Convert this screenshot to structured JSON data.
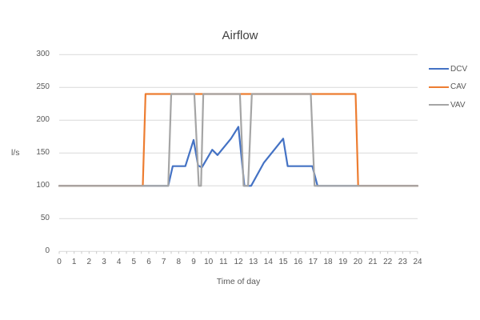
{
  "chart_data": {
    "type": "line",
    "title": "Airflow",
    "xlabel": "Time of day",
    "ylabel": "l/s",
    "xlim": [
      0,
      24
    ],
    "ylim": [
      0,
      300
    ],
    "xticks": [
      0,
      1,
      2,
      3,
      4,
      5,
      6,
      7,
      8,
      9,
      10,
      11,
      12,
      13,
      14,
      15,
      16,
      17,
      18,
      19,
      20,
      21,
      22,
      23,
      24
    ],
    "yticks": [
      0,
      50,
      100,
      150,
      200,
      250,
      300
    ],
    "grid": "horizontal",
    "legend_position": "right",
    "colors": {
      "grid": "#D9D9D9",
      "axis": "#D9D9D9",
      "tick": "#C9C9C9",
      "text": "#595959",
      "title": "#404040"
    },
    "series": [
      {
        "name": "DCV",
        "color": "#4472C4",
        "points": [
          [
            0,
            100
          ],
          [
            7.3,
            100
          ],
          [
            7.6,
            130
          ],
          [
            8.45,
            130
          ],
          [
            9.0,
            170
          ],
          [
            9.3,
            131
          ],
          [
            9.55,
            128
          ],
          [
            10.25,
            155
          ],
          [
            10.6,
            147
          ],
          [
            11.5,
            172
          ],
          [
            12.0,
            190
          ],
          [
            12.4,
            100
          ],
          [
            12.85,
            100
          ],
          [
            13.7,
            135
          ],
          [
            15.0,
            172
          ],
          [
            15.3,
            130
          ],
          [
            16.95,
            130
          ],
          [
            17.3,
            100
          ],
          [
            24,
            100
          ]
        ]
      },
      {
        "name": "CAV",
        "color": "#ED7D31",
        "points": [
          [
            0,
            100
          ],
          [
            5.6,
            100
          ],
          [
            5.78,
            240
          ],
          [
            19.85,
            240
          ],
          [
            20.02,
            100
          ],
          [
            24,
            100
          ]
        ]
      },
      {
        "name": "VAV",
        "color": "#A5A5A5",
        "points": [
          [
            0,
            100
          ],
          [
            7.3,
            100
          ],
          [
            7.5,
            240
          ],
          [
            9.05,
            240
          ],
          [
            9.35,
            100
          ],
          [
            9.5,
            100
          ],
          [
            9.65,
            240
          ],
          [
            12.1,
            240
          ],
          [
            12.35,
            100
          ],
          [
            12.65,
            100
          ],
          [
            12.9,
            240
          ],
          [
            16.85,
            240
          ],
          [
            17.1,
            100
          ],
          [
            24,
            100
          ]
        ]
      }
    ]
  }
}
